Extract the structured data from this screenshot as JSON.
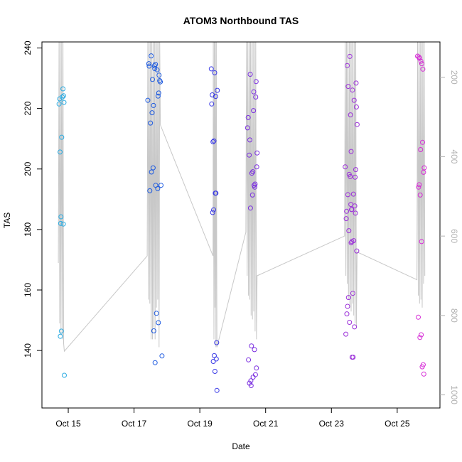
{
  "chart_data": {
    "type": "scatter",
    "title": "ATOM3 Northbound TAS",
    "xlabel": "Date",
    "ylabel": "TAS",
    "x_unit": "days (October)",
    "xlim": [
      14.2,
      26.3
    ],
    "ylim": [
      121,
      242
    ],
    "x_ticks": [
      {
        "value": 15,
        "label": "Oct 15"
      },
      {
        "value": 17,
        "label": "Oct 17"
      },
      {
        "value": 19,
        "label": "Oct 19"
      },
      {
        "value": 21,
        "label": "Oct 21"
      },
      {
        "value": 23,
        "label": "Oct 23"
      },
      {
        "value": 25,
        "label": "Oct 25"
      }
    ],
    "y_ticks": [
      140,
      160,
      180,
      200,
      220,
      240
    ],
    "y2_ticks": [
      200,
      400,
      600,
      800,
      1000
    ],
    "y2lim": [
      111,
      1033
    ],
    "y2_reversed": true,
    "grid": false,
    "colors": {
      "frame": "#000000",
      "right_axis": "#b3b3b3",
      "altitude_line": "#c8c8c8"
    },
    "series": [
      {
        "color": "#29abe2",
        "points": [
          [
            14.72,
            221.5
          ],
          [
            14.74,
            223.2
          ],
          [
            14.75,
            205.6
          ],
          [
            14.77,
            182.0
          ],
          [
            14.78,
            184.2
          ],
          [
            14.8,
            210.5
          ],
          [
            14.82,
            223.8
          ],
          [
            14.84,
            226.5
          ],
          [
            14.85,
            181.8
          ],
          [
            14.86,
            224.2
          ],
          [
            14.87,
            222.0
          ],
          [
            14.76,
            144.7
          ],
          [
            14.79,
            146.4
          ],
          [
            14.88,
            131.8
          ]
        ]
      },
      {
        "color": "#1d5ae0",
        "points": [
          [
            17.42,
            222.7
          ],
          [
            17.45,
            234.8
          ],
          [
            17.46,
            234.0
          ],
          [
            17.48,
            192.8
          ],
          [
            17.5,
            215.2
          ],
          [
            17.52,
            237.4
          ],
          [
            17.53,
            199.0
          ],
          [
            17.55,
            218.6
          ],
          [
            17.56,
            229.6
          ],
          [
            17.58,
            200.4
          ],
          [
            17.59,
            221.0
          ],
          [
            17.6,
            146.5
          ],
          [
            17.62,
            234.1
          ],
          [
            17.63,
            233.2
          ],
          [
            17.64,
            136.0
          ],
          [
            17.65,
            234.6
          ],
          [
            17.66,
            194.6
          ],
          [
            17.68,
            152.3
          ],
          [
            17.7,
            232.8
          ],
          [
            17.72,
            193.5
          ],
          [
            17.73,
            224.1
          ],
          [
            17.74,
            149.2
          ],
          [
            17.75,
            225.1
          ],
          [
            17.76,
            231.0
          ],
          [
            17.78,
            229.2
          ],
          [
            17.8,
            228.8
          ],
          [
            17.82,
            194.6
          ],
          [
            17.85,
            138.2
          ]
        ]
      },
      {
        "color": "#3a3ae6",
        "points": [
          [
            19.35,
            233.1
          ],
          [
            19.36,
            221.5
          ],
          [
            19.38,
            224.5
          ],
          [
            19.39,
            185.6
          ],
          [
            19.4,
            209.0
          ],
          [
            19.41,
            136.4
          ],
          [
            19.42,
            186.5
          ],
          [
            19.43,
            209.3
          ],
          [
            19.44,
            138.3
          ],
          [
            19.45,
            231.8
          ],
          [
            19.46,
            133.1
          ],
          [
            19.47,
            192.0
          ],
          [
            19.48,
            224.0
          ],
          [
            19.49,
            192.0
          ],
          [
            19.5,
            137.2
          ],
          [
            19.51,
            142.6
          ],
          [
            19.52,
            126.8
          ],
          [
            19.53,
            226.0
          ]
        ]
      },
      {
        "color": "#7a2ee0",
        "points": [
          [
            20.45,
            213.6
          ],
          [
            20.47,
            217.0
          ],
          [
            20.48,
            136.9
          ],
          [
            20.5,
            204.6
          ],
          [
            20.51,
            129.2
          ],
          [
            20.52,
            209.6
          ],
          [
            20.53,
            231.3
          ],
          [
            20.54,
            187.1
          ],
          [
            20.55,
            130.0
          ],
          [
            20.56,
            128.4
          ],
          [
            20.57,
            141.5
          ],
          [
            20.58,
            198.6
          ],
          [
            20.6,
            191.4
          ],
          [
            20.61,
            199.1
          ],
          [
            20.62,
            131.2
          ],
          [
            20.63,
            219.3
          ],
          [
            20.64,
            225.5
          ],
          [
            20.65,
            194.6
          ],
          [
            20.66,
            140.3
          ],
          [
            20.67,
            194.0
          ],
          [
            20.68,
            195.0
          ],
          [
            20.69,
            132.0
          ],
          [
            20.7,
            223.8
          ],
          [
            20.71,
            228.9
          ],
          [
            20.72,
            134.2
          ],
          [
            20.73,
            200.7
          ],
          [
            20.74,
            205.3
          ]
        ]
      },
      {
        "color": "#9b30d9",
        "points": [
          [
            23.42,
            200.7
          ],
          [
            23.44,
            145.4
          ],
          [
            23.45,
            183.6
          ],
          [
            23.46,
            186.0
          ],
          [
            23.47,
            152.1
          ],
          [
            23.48,
            234.2
          ],
          [
            23.49,
            154.6
          ],
          [
            23.5,
            191.5
          ],
          [
            23.51,
            227.3
          ],
          [
            23.52,
            157.5
          ],
          [
            23.53,
            179.6
          ],
          [
            23.54,
            198.2
          ],
          [
            23.55,
            149.3
          ],
          [
            23.56,
            237.2
          ],
          [
            23.57,
            197.5
          ],
          [
            23.58,
            217.9
          ],
          [
            23.59,
            188.3
          ],
          [
            23.6,
            175.6
          ],
          [
            23.61,
            186.6
          ],
          [
            23.62,
            176.0
          ],
          [
            23.63,
            137.8
          ],
          [
            23.64,
            226.1
          ],
          [
            23.65,
            158.9
          ],
          [
            23.66,
            137.8
          ],
          [
            23.67,
            191.7
          ],
          [
            23.68,
            176.3
          ],
          [
            23.69,
            222.7
          ],
          [
            23.7,
            147.8
          ],
          [
            23.71,
            187.8
          ],
          [
            23.72,
            197.3
          ],
          [
            23.73,
            185.4
          ],
          [
            23.74,
            199.8
          ],
          [
            23.75,
            228.4
          ],
          [
            23.76,
            220.5
          ],
          [
            23.77,
            172.9
          ],
          [
            23.78,
            214.7
          ],
          [
            23.6,
            205.8
          ],
          [
            23.62,
            186.6
          ]
        ]
      },
      {
        "color": "#d62ad6",
        "points": [
          [
            25.62,
            237.3
          ],
          [
            25.64,
            151.0
          ],
          [
            25.65,
            194.0
          ],
          [
            25.66,
            237.0
          ],
          [
            25.67,
            194.8
          ],
          [
            25.68,
            236.6
          ],
          [
            25.69,
            144.3
          ],
          [
            25.7,
            191.4
          ],
          [
            25.71,
            206.4
          ],
          [
            25.72,
            235.6
          ],
          [
            25.73,
            145.2
          ],
          [
            25.74,
            176.0
          ],
          [
            25.75,
            234.8
          ],
          [
            25.76,
            134.6
          ],
          [
            25.77,
            208.8
          ],
          [
            25.78,
            233.0
          ],
          [
            25.79,
            135.3
          ],
          [
            25.8,
            198.9
          ],
          [
            25.81,
            132.2
          ],
          [
            25.82,
            200.4
          ]
        ]
      }
    ],
    "altitude_line": [
      [
        14.7,
        668
      ],
      [
        14.72,
        100
      ],
      [
        14.74,
        820
      ],
      [
        14.76,
        100
      ],
      [
        14.78,
        850
      ],
      [
        14.8,
        100
      ],
      [
        14.82,
        860
      ],
      [
        14.84,
        100
      ],
      [
        14.86,
        870
      ],
      [
        14.88,
        890
      ],
      [
        17.4,
        650
      ],
      [
        17.42,
        100
      ],
      [
        17.44,
        760
      ],
      [
        17.46,
        100
      ],
      [
        17.48,
        770
      ],
      [
        17.5,
        100
      ],
      [
        17.52,
        860
      ],
      [
        17.54,
        100
      ],
      [
        17.56,
        860
      ],
      [
        17.58,
        100
      ],
      [
        17.6,
        830
      ],
      [
        17.62,
        100
      ],
      [
        17.64,
        860
      ],
      [
        17.66,
        100
      ],
      [
        17.68,
        780
      ],
      [
        17.7,
        100
      ],
      [
        17.72,
        760
      ],
      [
        17.74,
        100
      ],
      [
        17.76,
        880
      ],
      [
        17.78,
        100
      ],
      [
        17.8,
        320
      ],
      [
        19.4,
        650
      ],
      [
        19.41,
        100
      ],
      [
        19.43,
        860
      ],
      [
        19.44,
        100
      ],
      [
        19.46,
        780
      ],
      [
        19.47,
        100
      ],
      [
        19.49,
        880
      ],
      [
        19.5,
        100
      ],
      [
        19.52,
        880
      ],
      [
        20.4,
        590
      ],
      [
        20.42,
        100
      ],
      [
        20.44,
        700
      ],
      [
        20.46,
        100
      ],
      [
        20.48,
        750
      ],
      [
        20.5,
        100
      ],
      [
        20.52,
        760
      ],
      [
        20.54,
        100
      ],
      [
        20.56,
        800
      ],
      [
        20.58,
        100
      ],
      [
        20.6,
        810
      ],
      [
        20.62,
        100
      ],
      [
        20.64,
        790
      ],
      [
        20.66,
        100
      ],
      [
        20.68,
        840
      ],
      [
        20.7,
        100
      ],
      [
        20.72,
        860
      ],
      [
        20.74,
        700
      ],
      [
        23.4,
        600
      ],
      [
        23.42,
        100
      ],
      [
        23.44,
        700
      ],
      [
        23.46,
        100
      ],
      [
        23.48,
        720
      ],
      [
        23.5,
        100
      ],
      [
        23.52,
        760
      ],
      [
        23.54,
        100
      ],
      [
        23.56,
        780
      ],
      [
        23.58,
        100
      ],
      [
        23.6,
        790
      ],
      [
        23.62,
        100
      ],
      [
        23.64,
        770
      ],
      [
        23.66,
        100
      ],
      [
        23.68,
        800
      ],
      [
        23.7,
        100
      ],
      [
        23.72,
        820
      ],
      [
        23.74,
        100
      ],
      [
        23.76,
        830
      ],
      [
        23.78,
        640
      ],
      [
        25.6,
        710
      ],
      [
        25.62,
        100
      ],
      [
        25.64,
        750
      ],
      [
        25.66,
        100
      ],
      [
        25.68,
        770
      ],
      [
        25.7,
        100
      ],
      [
        25.72,
        760
      ],
      [
        25.74,
        100
      ],
      [
        25.76,
        780
      ],
      [
        25.78,
        100
      ],
      [
        25.8,
        720
      ],
      [
        25.82,
        100
      ],
      [
        25.84,
        700
      ]
    ]
  }
}
